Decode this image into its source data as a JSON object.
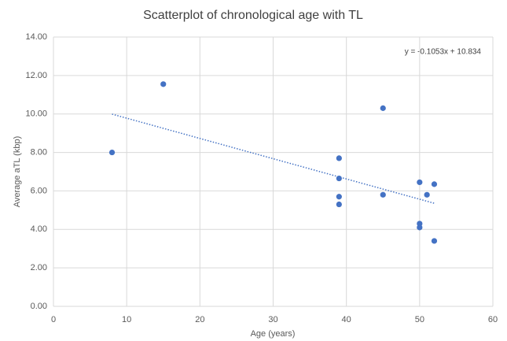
{
  "chart_data": {
    "type": "scatter",
    "title": "Scatterplot of chronological age with TL",
    "x_label": "Age (years)",
    "y_label": "Average aTL (kbp)",
    "series": [
      {
        "name": "aTL",
        "color": "#4472c4",
        "x": [
          8,
          15,
          39,
          39,
          39,
          39,
          45,
          45,
          50,
          50,
          50,
          51,
          52,
          52
        ],
        "values": [
          8.0,
          11.55,
          7.7,
          6.65,
          5.7,
          5.3,
          10.3,
          5.8,
          6.45,
          4.3,
          4.1,
          5.8,
          6.35,
          3.4
        ]
      }
    ],
    "trendline": {
      "label": "y = -0.1053x + 10.834",
      "slope": -0.1053,
      "intercept": 10.834,
      "color": "#4472c4"
    },
    "xlim": [
      0,
      60
    ],
    "xticks": [
      0,
      10,
      20,
      30,
      40,
      50,
      60
    ],
    "ylim": [
      0,
      14
    ],
    "yticks": [
      {
        "value": 0,
        "label": "0.00"
      },
      {
        "value": 2,
        "label": "2.00"
      },
      {
        "value": 4,
        "label": "4.00"
      },
      {
        "value": 6,
        "label": "6.00"
      },
      {
        "value": 8,
        "label": "8.00"
      },
      {
        "value": 10,
        "label": "10.00"
      },
      {
        "value": 12,
        "label": "12.00"
      },
      {
        "value": 14,
        "label": "14.00"
      }
    ],
    "grid": true
  }
}
